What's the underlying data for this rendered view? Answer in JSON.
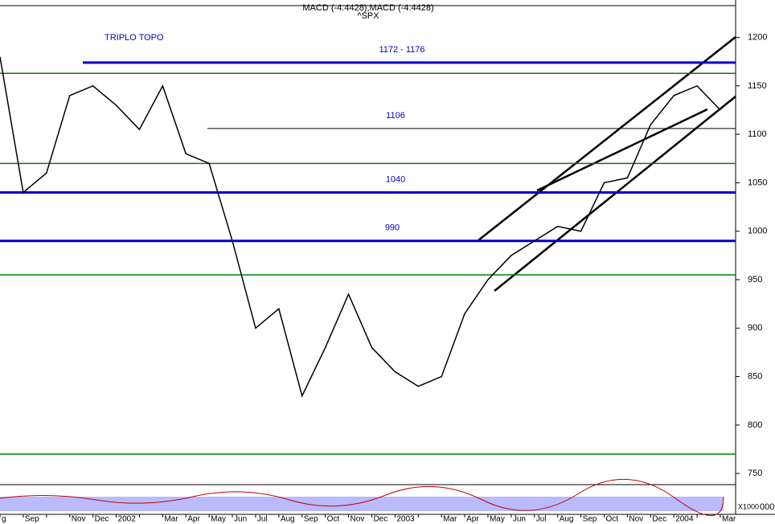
{
  "chart_data": {
    "type": "line",
    "title": "^SPX",
    "subtitle": "MACD (-4.4428),MACD (-4.4428)",
    "annotation": "TRIPLO TOPO",
    "volume_unit": "X1000",
    "volume_tick": "000",
    "categories": [
      "g",
      "Sep",
      null,
      "Nov",
      "Dec",
      "2002",
      null,
      "Mar",
      "Apr",
      "May",
      "Jun",
      "Jul",
      "Aug",
      "Sep",
      "Oct",
      "Nov",
      "Dec",
      "2003",
      null,
      "Mar",
      "Apr",
      "May",
      "Jun",
      "Jul",
      "Aug",
      "Sep",
      "Oct",
      "Nov",
      "Dec",
      "2004",
      null,
      "Mar"
    ],
    "series": [
      {
        "name": "^SPX",
        "color": "#000000",
        "values": [
          1180,
          1040,
          1060,
          1140,
          1150,
          1130,
          1105,
          1150,
          1080,
          1070,
          990,
          900,
          920,
          830,
          880,
          935,
          880,
          855,
          840,
          850,
          915,
          950,
          975,
          990,
          1005,
          1000,
          1050,
          1055,
          1110,
          1140,
          1150,
          1125
        ]
      }
    ],
    "levels": [
      {
        "value": 1174,
        "color": "#0000cc",
        "label": "1172 - 1176"
      },
      {
        "value": 1163,
        "color": "#008000"
      },
      {
        "value": 1106,
        "color": "#000000",
        "label": "1106"
      },
      {
        "value": 1070,
        "color": "#008000"
      },
      {
        "value": 1040,
        "color": "#0000cc",
        "label": "1040"
      },
      {
        "value": 990,
        "color": "#0000cc",
        "label": "990"
      },
      {
        "value": 955,
        "color": "#008000"
      },
      {
        "value": 770,
        "color": "#008000"
      }
    ],
    "ylim": [
      741,
      1232
    ],
    "yticks": [
      750,
      800,
      850,
      900,
      950,
      1000,
      1050,
      1100,
      1150,
      1200
    ]
  }
}
